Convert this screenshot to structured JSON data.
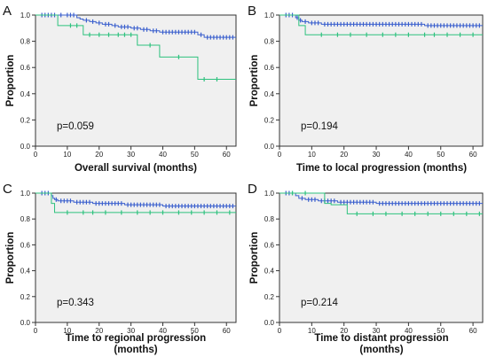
{
  "chart_data": [
    {
      "type": "line",
      "panel_label": "A",
      "xlabel": "Overall survival (months)",
      "ylabel": "Proportion",
      "annotation": "p=0.059",
      "xlim": [
        0,
        63
      ],
      "ylim": [
        0,
        1.0
      ],
      "xticks": [
        "0",
        "10",
        "20",
        "30",
        "40",
        "50",
        "60"
      ],
      "yticks": [
        "0.0",
        "0.2",
        "0.4",
        "0.6",
        "0.8",
        "1.0"
      ],
      "grid": false,
      "colors": {
        "blue": "#3a5fcd",
        "green": "#2ec27e"
      },
      "series": [
        {
          "color": "blue",
          "steps": [
            [
              0,
              1.0
            ],
            [
              13,
              0.98
            ],
            [
              14,
              0.97
            ],
            [
              15,
              0.96
            ],
            [
              17,
              0.95
            ],
            [
              19,
              0.94
            ],
            [
              21,
              0.93
            ],
            [
              24,
              0.92
            ],
            [
              26,
              0.91
            ],
            [
              30,
              0.9
            ],
            [
              33,
              0.89
            ],
            [
              36,
              0.88
            ],
            [
              39,
              0.87
            ],
            [
              51,
              0.85
            ],
            [
              53,
              0.83
            ],
            [
              63,
              0.83
            ]
          ],
          "censored": [
            2,
            3,
            4,
            5,
            6,
            8,
            10,
            11,
            12,
            16,
            18,
            20,
            22,
            23,
            25,
            27,
            28,
            29,
            31,
            32,
            34,
            35,
            37,
            38,
            40,
            41,
            42,
            43,
            44,
            45,
            46,
            47,
            48,
            49,
            50,
            52,
            54,
            55,
            56,
            57,
            58,
            59,
            60,
            61,
            62
          ]
        },
        {
          "color": "green",
          "steps": [
            [
              0,
              1.0
            ],
            [
              7,
              0.92
            ],
            [
              15,
              0.85
            ],
            [
              32,
              0.77
            ],
            [
              39,
              0.68
            ],
            [
              51,
              0.51
            ],
            [
              63,
              0.51
            ]
          ],
          "censored": [
            11,
            13,
            17,
            20,
            23,
            26,
            28,
            30,
            36,
            45,
            53,
            57
          ]
        }
      ]
    },
    {
      "type": "line",
      "panel_label": "B",
      "xlabel": "Time to local progression (months)",
      "ylabel": "Proportion",
      "annotation": "p=0.194",
      "xlim": [
        0,
        63
      ],
      "ylim": [
        0,
        1.0
      ],
      "xticks": [
        "0",
        "10",
        "20",
        "30",
        "40",
        "50",
        "60"
      ],
      "yticks": [
        "0.0",
        "0.2",
        "0.4",
        "0.6",
        "0.8",
        "1.0"
      ],
      "grid": false,
      "colors": {
        "blue": "#3a5fcd",
        "green": "#2ec27e"
      },
      "series": [
        {
          "color": "blue",
          "steps": [
            [
              0,
              1.0
            ],
            [
              5,
              0.98
            ],
            [
              6,
              0.96
            ],
            [
              7,
              0.95
            ],
            [
              9,
              0.94
            ],
            [
              13,
              0.93
            ],
            [
              45,
              0.92
            ],
            [
              63,
              0.92
            ]
          ],
          "censored": [
            2,
            3,
            4,
            5.5,
            6.5,
            8,
            10,
            11,
            12,
            14,
            15,
            16,
            17,
            18,
            19,
            20,
            21,
            22,
            23,
            24,
            25,
            26,
            27,
            28,
            29,
            30,
            31,
            32,
            33,
            34,
            35,
            36,
            37,
            38,
            39,
            40,
            41,
            42,
            43,
            44,
            46,
            47,
            48,
            49,
            50,
            51,
            52,
            53,
            54,
            55,
            56,
            57,
            58,
            59,
            60,
            61,
            62
          ]
        },
        {
          "color": "green",
          "steps": [
            [
              0,
              1.0
            ],
            [
              6,
              0.92
            ],
            [
              8,
              0.85
            ],
            [
              63,
              0.85
            ]
          ],
          "censored": [
            13,
            18,
            22,
            27,
            32,
            36,
            40,
            45,
            48,
            52,
            56,
            60
          ]
        }
      ]
    },
    {
      "type": "line",
      "panel_label": "C",
      "xlabel": "Time to regional progression (months)",
      "ylabel": "Proportion",
      "annotation": "p=0.343",
      "xlim": [
        0,
        63
      ],
      "ylim": [
        0,
        1.0
      ],
      "xticks": [
        "0",
        "10",
        "20",
        "30",
        "40",
        "50",
        "60"
      ],
      "yticks": [
        "0.0",
        "0.2",
        "0.4",
        "0.6",
        "0.8",
        "1.0"
      ],
      "grid": false,
      "colors": {
        "blue": "#3a5fcd",
        "green": "#2ec27e"
      },
      "series": [
        {
          "color": "blue",
          "steps": [
            [
              0,
              1.0
            ],
            [
              5,
              0.98
            ],
            [
              5.5,
              0.96
            ],
            [
              6,
              0.95
            ],
            [
              7,
              0.94
            ],
            [
              12,
              0.93
            ],
            [
              18,
              0.92
            ],
            [
              28,
              0.91
            ],
            [
              40,
              0.9
            ],
            [
              63,
              0.9
            ]
          ],
          "censored": [
            2,
            3,
            4,
            6.5,
            8,
            9,
            10,
            11,
            13,
            14,
            15,
            16,
            17,
            19,
            20,
            21,
            22,
            23,
            24,
            25,
            26,
            27,
            29,
            30,
            31,
            32,
            33,
            34,
            35,
            36,
            37,
            38,
            39,
            41,
            42,
            43,
            44,
            45,
            46,
            47,
            48,
            49,
            50,
            51,
            52,
            53,
            54,
            55,
            56,
            57,
            58,
            59,
            60,
            61,
            62
          ]
        },
        {
          "color": "green",
          "steps": [
            [
              0,
              1.0
            ],
            [
              5,
              0.92
            ],
            [
              6,
              0.85
            ],
            [
              63,
              0.85
            ]
          ],
          "censored": [
            10,
            15,
            18,
            22,
            27,
            32,
            36,
            40,
            45,
            49,
            53,
            57,
            61
          ]
        }
      ]
    },
    {
      "type": "line",
      "panel_label": "D",
      "xlabel": "Time to distant progression (months)",
      "ylabel": "Proportion",
      "annotation": "p=0.214",
      "xlim": [
        0,
        63
      ],
      "ylim": [
        0,
        1.0
      ],
      "xticks": [
        "0",
        "10",
        "20",
        "30",
        "40",
        "50",
        "60"
      ],
      "yticks": [
        "0.0",
        "0.2",
        "0.4",
        "0.6",
        "0.8",
        "1.0"
      ],
      "grid": false,
      "colors": {
        "blue": "#3a5fcd",
        "green": "#2ec27e"
      },
      "series": [
        {
          "color": "blue",
          "steps": [
            [
              0,
              1.0
            ],
            [
              5,
              0.98
            ],
            [
              6,
              0.96
            ],
            [
              8,
              0.95
            ],
            [
              12,
              0.94
            ],
            [
              18,
              0.93
            ],
            [
              30,
              0.92
            ],
            [
              63,
              0.92
            ]
          ],
          "censored": [
            2,
            3,
            4,
            7,
            9,
            10,
            11,
            13,
            14,
            15,
            16,
            17,
            19,
            20,
            21,
            22,
            23,
            24,
            25,
            26,
            27,
            28,
            29,
            31,
            32,
            33,
            34,
            35,
            36,
            37,
            38,
            39,
            40,
            41,
            42,
            43,
            44,
            45,
            46,
            47,
            48,
            49,
            50,
            51,
            52,
            53,
            54,
            55,
            56,
            57,
            58,
            59,
            60,
            61,
            62
          ]
        },
        {
          "color": "green",
          "steps": [
            [
              0,
              1.0
            ],
            [
              14,
              0.92
            ],
            [
              16,
              0.91
            ],
            [
              21,
              0.84
            ],
            [
              63,
              0.84
            ]
          ],
          "censored": [
            4,
            8,
            24,
            29,
            33,
            38,
            42,
            46,
            50,
            54,
            58,
            62
          ]
        }
      ]
    }
  ]
}
